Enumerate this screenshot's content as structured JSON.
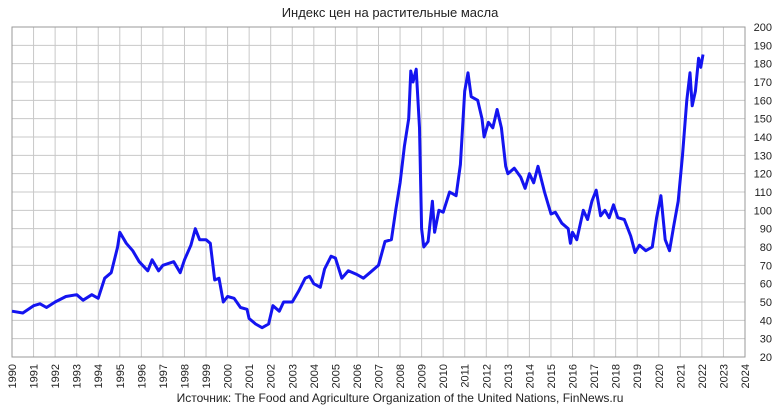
{
  "chart_data": {
    "type": "line",
    "title": "Индекс цен на растительные масла",
    "source": "Источник: The Food and Agriculture Organization of the United Nations, FinNews.ru",
    "color": "#1414f0",
    "grid": true,
    "xlim": [
      1990,
      2024
    ],
    "xticks": [
      1990,
      1991,
      1992,
      1993,
      1994,
      1995,
      1996,
      1997,
      1998,
      1999,
      2000,
      2001,
      2002,
      2003,
      2004,
      2005,
      2006,
      2007,
      2008,
      2009,
      2010,
      2011,
      2012,
      2013,
      2014,
      2015,
      2016,
      2017,
      2018,
      2019,
      2020,
      2021,
      2022,
      2023,
      2024
    ],
    "ylim": [
      20,
      200
    ],
    "yticks": [
      20,
      30,
      40,
      50,
      60,
      70,
      80,
      90,
      100,
      110,
      120,
      130,
      140,
      150,
      160,
      170,
      180,
      190,
      200
    ],
    "x": [
      1990,
      1990.5,
      1991,
      1991.3,
      1991.6,
      1992,
      1992.5,
      1993,
      1993.3,
      1993.7,
      1994,
      1994.3,
      1994.6,
      1994.9,
      1995,
      1995.3,
      1995.6,
      1995.9,
      1996.3,
      1996.5,
      1996.8,
      1997,
      1997.5,
      1997.8,
      1998,
      1998.3,
      1998.5,
      1998.7,
      1999,
      1999.2,
      1999.4,
      1999.6,
      1999.8,
      2000,
      2000.3,
      2000.6,
      2000.9,
      2001,
      2001.3,
      2001.6,
      2001.9,
      2002.1,
      2002.4,
      2002.6,
      2003,
      2003.3,
      2003.6,
      2003.8,
      2004,
      2004.3,
      2004.5,
      2004.8,
      2005,
      2005.3,
      2005.6,
      2006,
      2006.3,
      2006.6,
      2007,
      2007.3,
      2007.6,
      2007.8,
      2008,
      2008.2,
      2008.4,
      2008.5,
      2008.6,
      2008.75,
      2008.9,
      2009,
      2009.1,
      2009.3,
      2009.5,
      2009.6,
      2009.8,
      2010,
      2010.3,
      2010.6,
      2010.8,
      2011,
      2011.15,
      2011.3,
      2011.6,
      2011.8,
      2011.9,
      2012.1,
      2012.3,
      2012.5,
      2012.7,
      2012.9,
      2013,
      2013.3,
      2013.6,
      2013.8,
      2014,
      2014.2,
      2014.4,
      2014.7,
      2015,
      2015.2,
      2015.5,
      2015.8,
      2015.9,
      2016,
      2016.2,
      2016.5,
      2016.7,
      2016.9,
      2017.1,
      2017.3,
      2017.5,
      2017.7,
      2017.9,
      2018.1,
      2018.4,
      2018.7,
      2018.9,
      2019.1,
      2019.4,
      2019.7,
      2019.9,
      2020.1,
      2020.3,
      2020.5,
      2020.7,
      2020.9,
      2021.1,
      2021.3,
      2021.45,
      2021.55,
      2021.7,
      2021.85,
      2021.95,
      2022.05
    ],
    "values": [
      45,
      44,
      48,
      49,
      47,
      50,
      53,
      54,
      51,
      54,
      52,
      63,
      66,
      80,
      88,
      82,
      78,
      72,
      67,
      73,
      67,
      70,
      72,
      66,
      73,
      81,
      90,
      84,
      84,
      82,
      62,
      63,
      50,
      53,
      52,
      47,
      46,
      41,
      38,
      36,
      38,
      48,
      45,
      50,
      50,
      56,
      63,
      64,
      60,
      58,
      68,
      75,
      74,
      63,
      67,
      65,
      63,
      66,
      70,
      83,
      84,
      100,
      115,
      135,
      150,
      176,
      170,
      177,
      145,
      90,
      80,
      83,
      105,
      88,
      100,
      99,
      110,
      108,
      125,
      165,
      175,
      162,
      160,
      150,
      140,
      148,
      145,
      155,
      145,
      124,
      120,
      123,
      118,
      112,
      120,
      115,
      124,
      110,
      98,
      99,
      93,
      90,
      82,
      88,
      84,
      100,
      95,
      105,
      111,
      97,
      100,
      96,
      103,
      96,
      95,
      86,
      77,
      81,
      78,
      80,
      96,
      108,
      84,
      78,
      92,
      105,
      130,
      160,
      175,
      157,
      165,
      183,
      178,
      185
    ]
  }
}
